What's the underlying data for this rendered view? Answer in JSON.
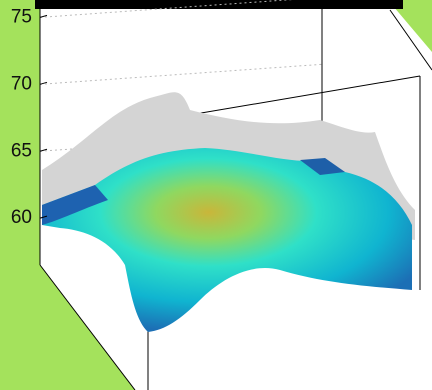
{
  "chart_data": {
    "type": "surface",
    "zlim": [
      56.5,
      76.3
    ],
    "zticks": [
      60,
      65,
      70,
      75
    ],
    "grid": true
  }
}
